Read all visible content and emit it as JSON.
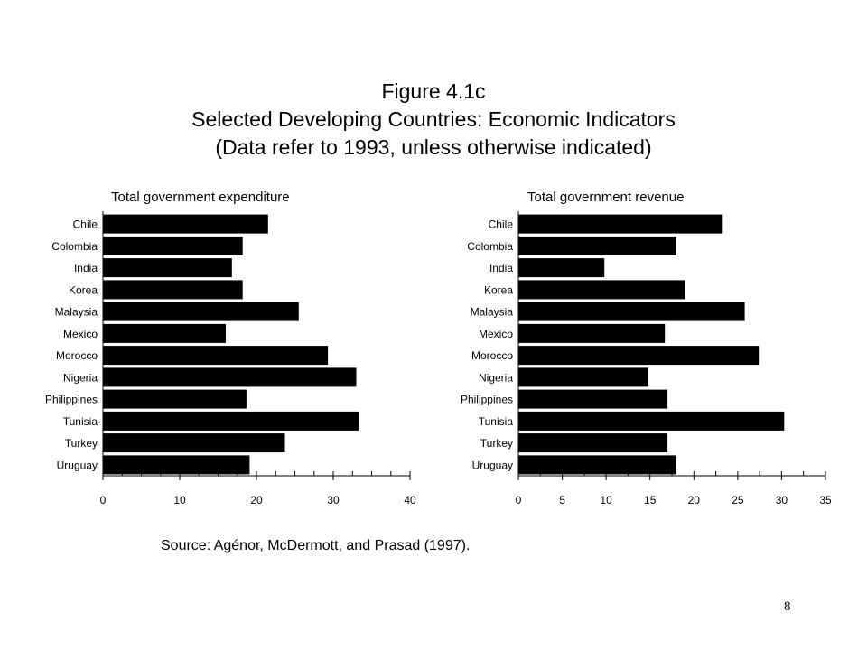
{
  "figure": {
    "title_line1": "Figure 4.1c",
    "title_line2": "Selected Developing Countries: Economic Indicators",
    "title_line3": "(Data refer to 1993, unless otherwise indicated)"
  },
  "source": "Source: Agénor, McDermott, and Prasad (1997).",
  "page_number": "8",
  "chart_data": [
    {
      "type": "bar",
      "orientation": "horizontal",
      "title": "Total government expenditure",
      "categories": [
        "Chile",
        "Colombia",
        "India",
        "Korea",
        "Malaysia",
        "Mexico",
        "Morocco",
        "Nigeria",
        "Philippines",
        "Tunisia",
        "Turkey",
        "Uruguay"
      ],
      "values": [
        21.5,
        18.2,
        16.8,
        18.2,
        25.5,
        16.0,
        29.3,
        33.0,
        18.7,
        33.3,
        23.7,
        19.1
      ],
      "xlim": [
        0,
        40
      ],
      "xticks": [
        0,
        10,
        20,
        30,
        40
      ],
      "minor_step": 2.5,
      "bar_color": "#000000",
      "grid": false
    },
    {
      "type": "bar",
      "orientation": "horizontal",
      "title": "Total government revenue",
      "categories": [
        "Chile",
        "Colombia",
        "India",
        "Korea",
        "Malaysia",
        "Mexico",
        "Morocco",
        "Nigeria",
        "Philippines",
        "Tunisia",
        "Turkey",
        "Uruguay"
      ],
      "values": [
        23.3,
        18.0,
        9.8,
        19.0,
        25.8,
        16.7,
        27.4,
        14.8,
        17.0,
        30.3,
        17.0,
        18.0
      ],
      "xlim": [
        0,
        35
      ],
      "xticks": [
        0,
        5,
        10,
        15,
        20,
        25,
        30,
        35
      ],
      "minor_step": 2.5,
      "bar_color": "#000000",
      "grid": false
    }
  ]
}
